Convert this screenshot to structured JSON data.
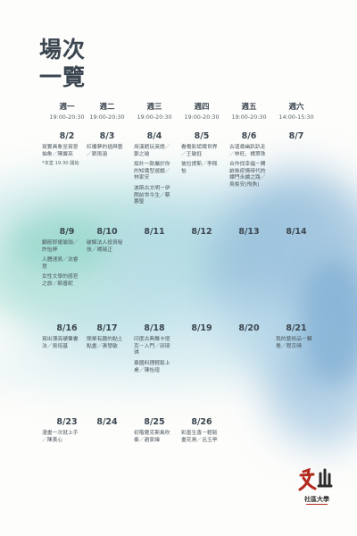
{
  "title": {
    "line1": "場次",
    "line2": "一覽"
  },
  "days": [
    {
      "name": "週一",
      "time": "19:00-20:30"
    },
    {
      "name": "週二",
      "time": "19:00-20:30"
    },
    {
      "name": "週三",
      "time": "19:00-20:30"
    },
    {
      "name": "週四",
      "time": "19:00-20:30"
    },
    {
      "name": "週五",
      "time": "19:00-20:30"
    },
    {
      "name": "週六",
      "time": "14:00-15:30"
    }
  ],
  "weeks": [
    {
      "dates": [
        "8/2",
        "8/3",
        "8/4",
        "8/5",
        "8/6",
        "8/7"
      ],
      "events": [
        [
          "寫實具象至寫意抽象／陳竇亮"
        ],
        [
          "紅樓夢的插與藝／劉雨涵"
        ],
        [
          "用漢館玩英語／鄭之瑜",
          "設計一款屬於你的知識型遊戲／林家安",
          "波斯古文明－伊朗前世今生／蔡蕙聖"
        ],
        [
          "看電影認識世界／王敏鈺",
          "彼拉提斯／李佩怡"
        ],
        [
          "古道尋幽趴趴走／林旺、楊翠珠",
          "合作找幸福－開啟後疫情時代的標門永續之路／吳俊安(飛魚)"
        ],
        []
      ],
      "note": "*本堂 19:30 開始"
    },
    {
      "dates": [
        "8/9",
        "8/10",
        "8/11",
        "8/12",
        "8/13",
        "8/14"
      ],
      "events": [
        [
          "翻筋舒緩瑜珈／許怡婷",
          "人體速寫／沈睿慧",
          "女性文學的感官之旅／賴善妮"
        ],
        [
          "破解法人投資秘技／楊瑞正"
        ],
        [],
        [],
        [],
        []
      ]
    },
    {
      "dates": [
        "8/16",
        "8/17",
        "8/18",
        "8/19",
        "8/20",
        "8/21"
      ],
      "events": [
        [
          "寫出漂亮硬筆書法／吳培基"
        ],
        [
          "簡單有趣的黏土點畫／張慧敏"
        ],
        [
          "印度古典舞卡塔克－入門／邱琬琪",
          "泰國料理輕鬆上桌／陳怡瑄"
        ],
        [],
        [],
        [
          "我的藝術品－觸覺／程京晴"
        ]
      ]
    },
    {
      "dates": [
        "8/23",
        "8/24",
        "8/25",
        "8/26"
      ],
      "events": [
        [
          "漫畫一次就上手／陳美心"
        ],
        [],
        [
          "初階薩克斯風吹奏／趙家緯"
        ],
        [
          "彩墨生香－輕鬆畫花鳥／呂玉亭"
        ]
      ]
    }
  ],
  "logo": {
    "mark": "文山",
    "text": "社區大學"
  },
  "colors": {
    "wash_teal": "#9fd8d0",
    "wash_blue": "#8fb9d8",
    "logo_red": "#b22a1e"
  }
}
